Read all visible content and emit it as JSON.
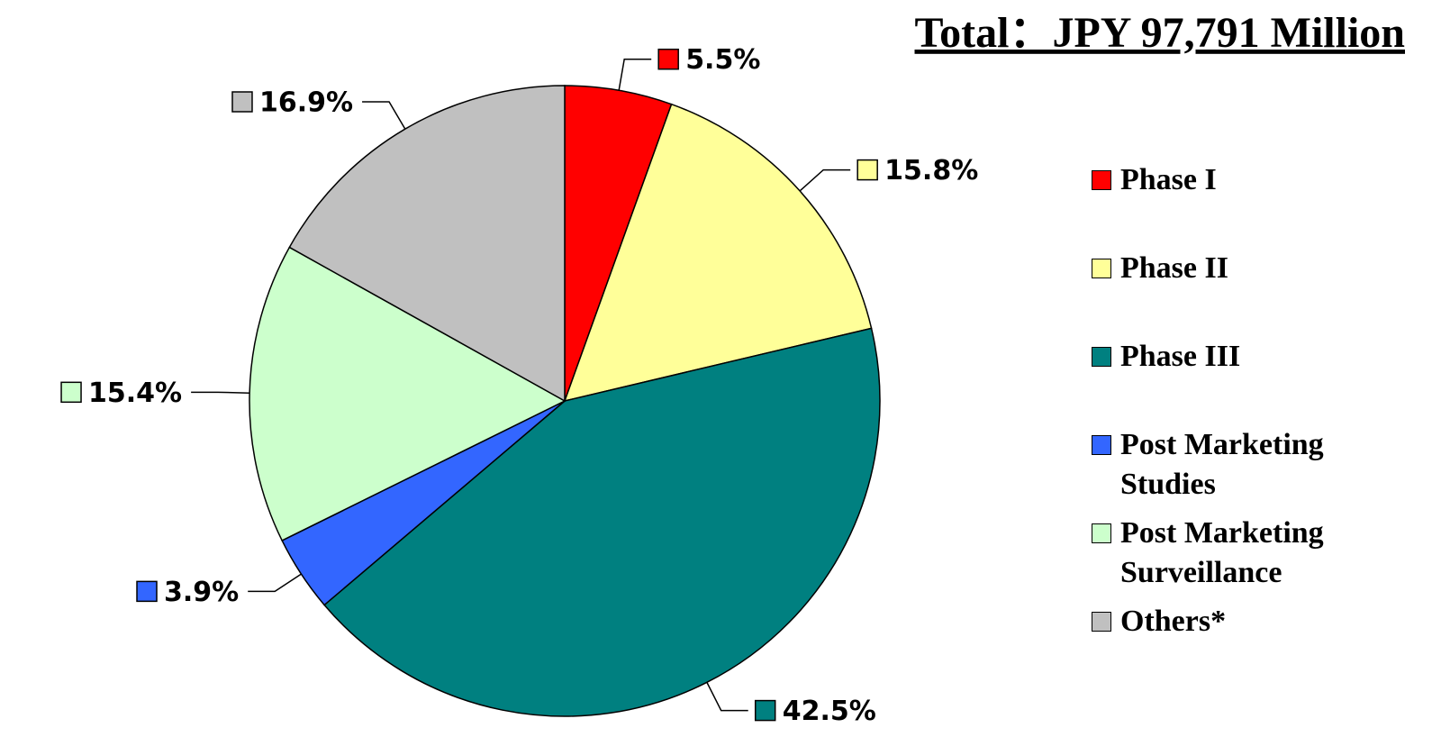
{
  "chart_data": {
    "type": "pie",
    "title": "Total：JPY 97,791 Million",
    "categories": [
      "Phase I",
      "Phase II",
      "Phase III",
      "Post Marketing Studies",
      "Post Marketing Surveillance",
      "Others*"
    ],
    "values": [
      5.5,
      15.8,
      42.5,
      3.9,
      15.4,
      16.9
    ],
    "value_labels": [
      "5.5%",
      "15.8%",
      "42.5%",
      "3.9%",
      "15.4%",
      "16.9%"
    ],
    "colors": [
      "#ff0000",
      "#ffff99",
      "#008080",
      "#3366ff",
      "#ccffcc",
      "#c0c0c0"
    ],
    "legend": "right"
  }
}
